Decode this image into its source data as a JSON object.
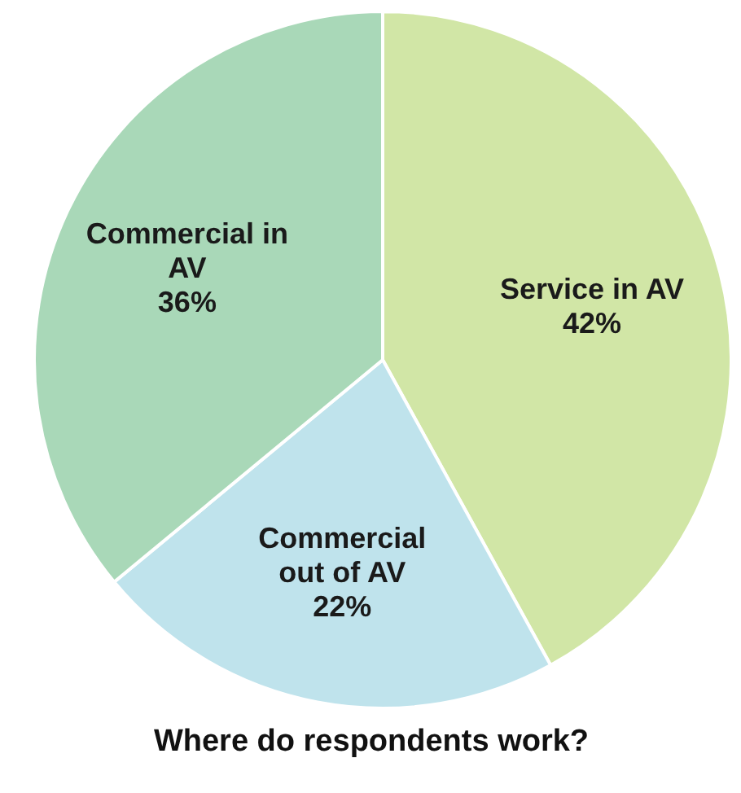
{
  "chart_data": {
    "type": "pie",
    "title": "Where do respondents work?",
    "categories": [
      "Service in AV",
      "Commercial out of AV",
      "Commercial in AV"
    ],
    "values": [
      42,
      22,
      36
    ],
    "value_labels": [
      "42%",
      "22%",
      "36%"
    ],
    "colors": [
      "#d1e6a6",
      "#bfe3ec",
      "#a9d8b8"
    ]
  }
}
